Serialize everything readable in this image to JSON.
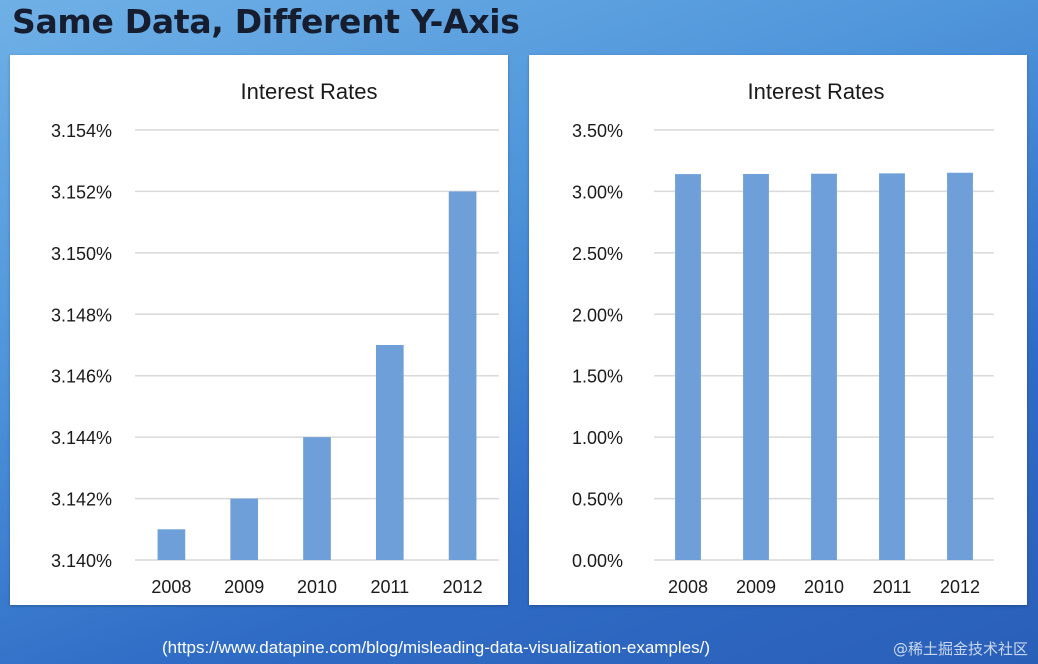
{
  "page": {
    "title": "Same Data, Different Y-Axis",
    "source": "(https://www.datapine.com/blog/misleading-data-visualization-examples/)",
    "watermark": "@稀土掘金技术社区"
  },
  "colors": {
    "bar": "#6f9fd9",
    "grid": "#d9d9d9",
    "axis_text": "#1a1a1a"
  },
  "chart_data": [
    {
      "type": "bar",
      "title": "Interest Rates",
      "categories": [
        "2008",
        "2009",
        "2010",
        "2011",
        "2012"
      ],
      "values": [
        3.141,
        3.142,
        3.144,
        3.147,
        3.152
      ],
      "ylim": [
        3.14,
        3.154
      ],
      "yticks": [
        3.14,
        3.142,
        3.144,
        3.146,
        3.148,
        3.15,
        3.152,
        3.154
      ],
      "ytick_labels": [
        "3.140%",
        "3.142%",
        "3.144%",
        "3.146%",
        "3.148%",
        "3.150%",
        "3.152%",
        "3.154%"
      ],
      "xlabel": "",
      "ylabel": "",
      "grid": true
    },
    {
      "type": "bar",
      "title": "Interest Rates",
      "categories": [
        "2008",
        "2009",
        "2010",
        "2011",
        "2012"
      ],
      "values": [
        3.141,
        3.142,
        3.144,
        3.147,
        3.152
      ],
      "ylim": [
        0,
        3.5
      ],
      "yticks": [
        0,
        0.5,
        1,
        1.5,
        2,
        2.5,
        3,
        3.5
      ],
      "ytick_labels": [
        "0.00%",
        "0.50%",
        "1.00%",
        "1.50%",
        "2.00%",
        "2.50%",
        "3.00%",
        "3.50%"
      ],
      "xlabel": "",
      "ylabel": "",
      "grid": true
    }
  ]
}
